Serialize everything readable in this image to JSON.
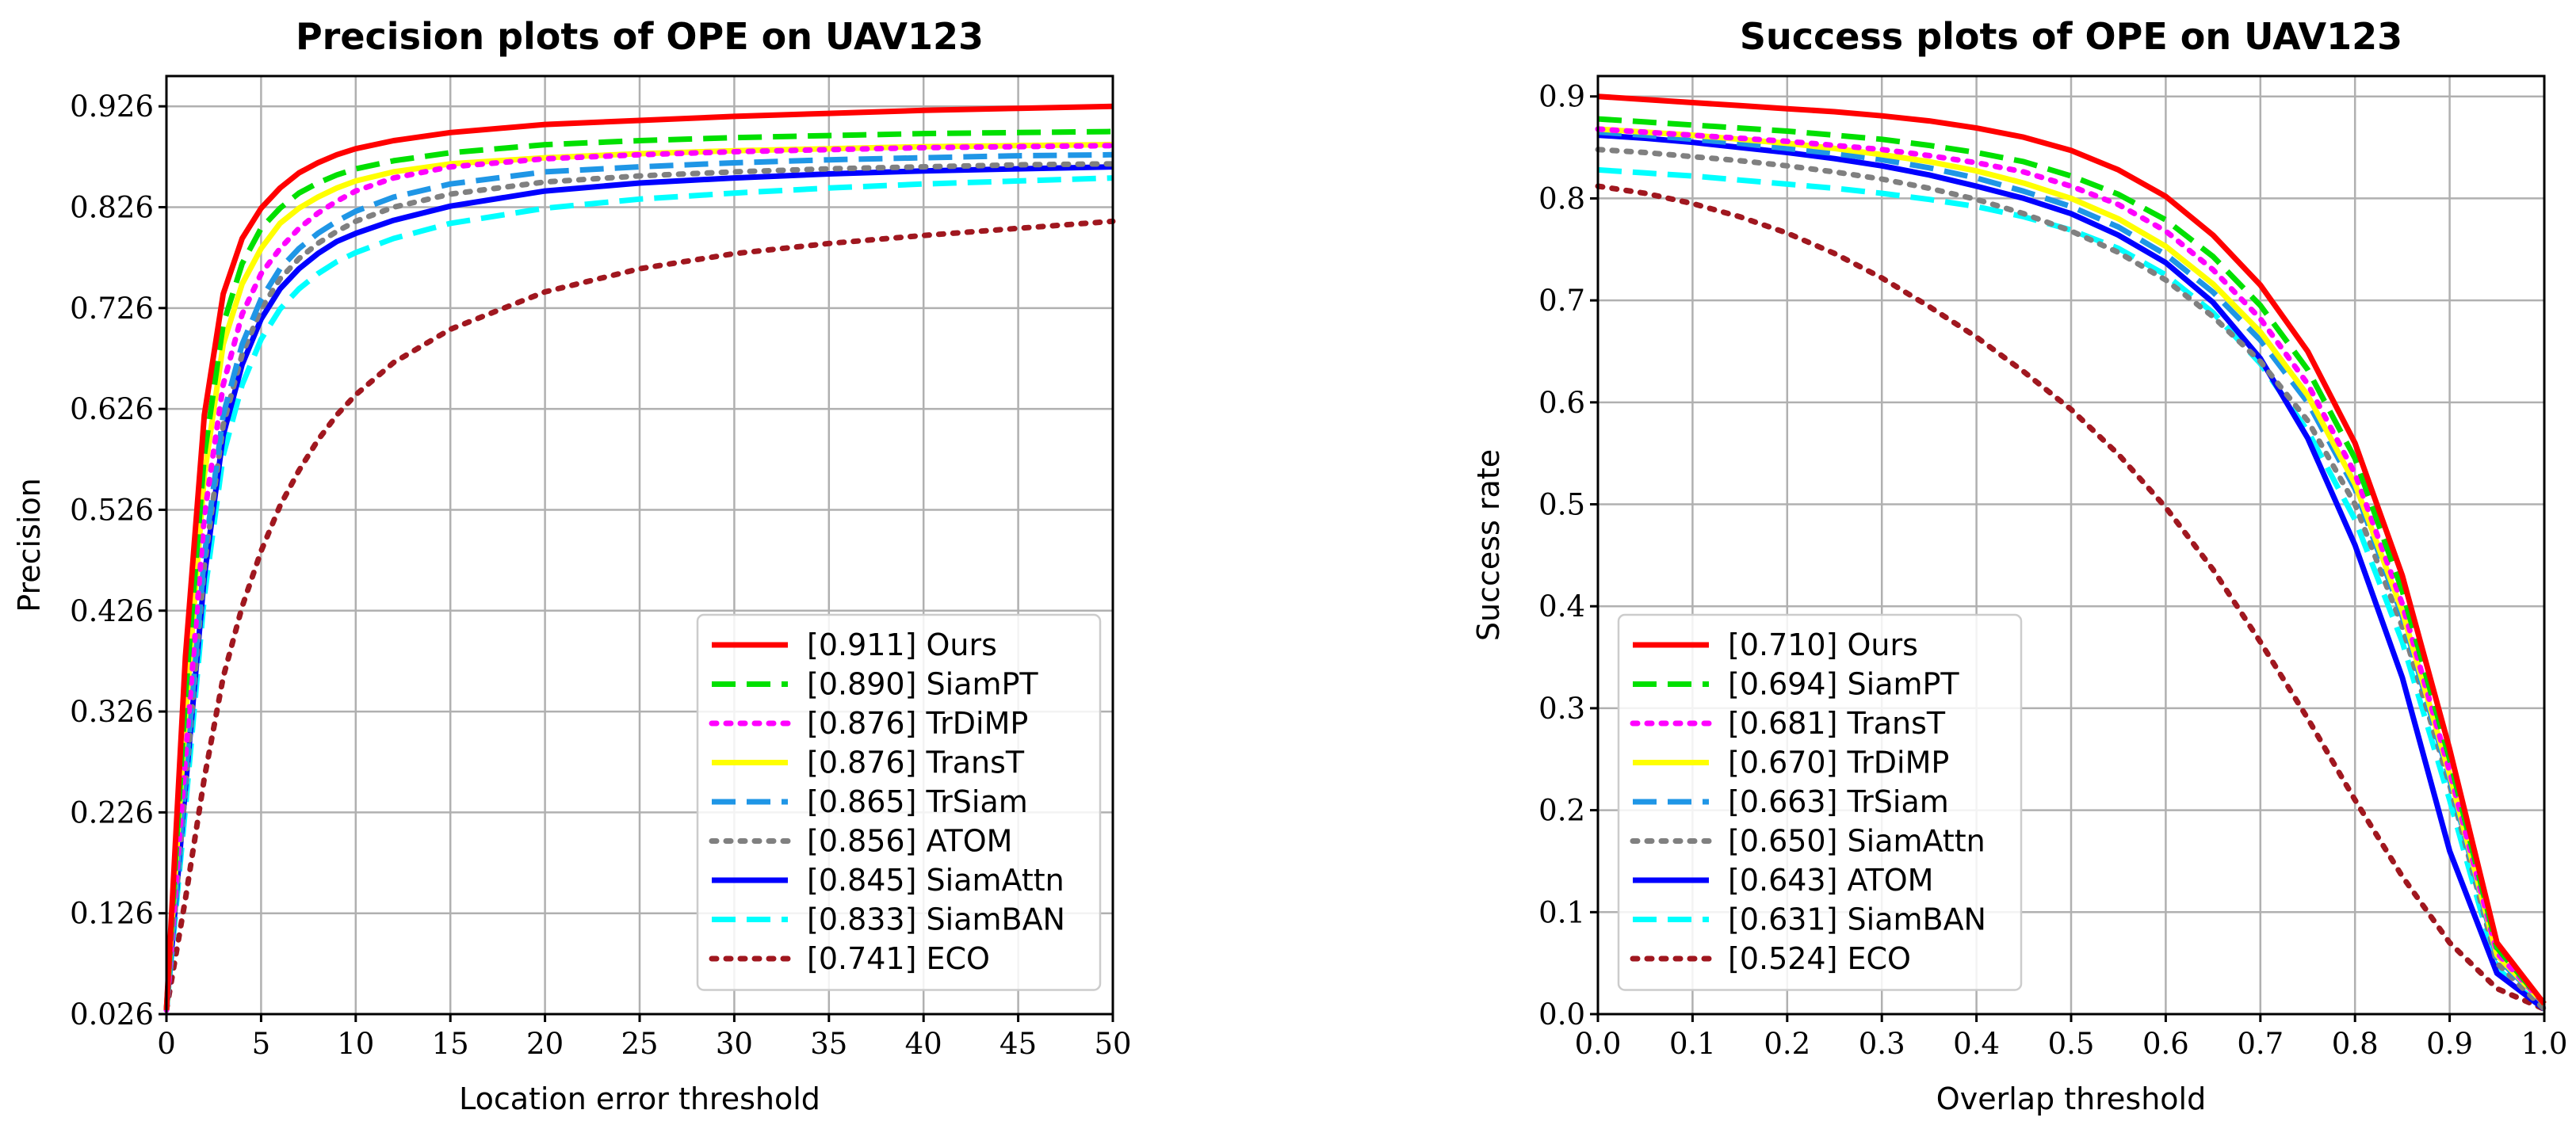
{
  "chart_data": [
    {
      "type": "line",
      "title": "Precision plots of OPE on UAV123",
      "xlabel": "Location error threshold",
      "ylabel": "Precision",
      "xlim": [
        0,
        50
      ],
      "ylim": [
        0.026,
        0.956
      ],
      "xticks": [
        "0",
        "5",
        "10",
        "15",
        "20",
        "25",
        "30",
        "35",
        "40",
        "45",
        "50"
      ],
      "xtick_values": [
        0,
        5,
        10,
        15,
        20,
        25,
        30,
        35,
        40,
        45,
        50
      ],
      "yticks": [
        "0.026",
        "0.126",
        "0.226",
        "0.326",
        "0.426",
        "0.526",
        "0.626",
        "0.726",
        "0.826",
        "0.926"
      ],
      "ytick_values": [
        0.026,
        0.126,
        0.226,
        0.326,
        0.426,
        0.526,
        0.626,
        0.726,
        0.826,
        0.926
      ],
      "grid": true,
      "legend_position": "lower-right",
      "x": [
        0,
        1,
        2,
        3,
        4,
        5,
        6,
        7,
        8,
        9,
        10,
        12,
        15,
        20,
        25,
        30,
        35,
        40,
        45,
        50
      ],
      "series": [
        {
          "name": "Ours",
          "score": "[0.911]",
          "color": "#ff0000",
          "style": "solid",
          "values": [
            0.03,
            0.38,
            0.62,
            0.74,
            0.795,
            0.825,
            0.845,
            0.86,
            0.87,
            0.878,
            0.884,
            0.892,
            0.9,
            0.908,
            0.912,
            0.916,
            0.919,
            0.922,
            0.924,
            0.926
          ]
        },
        {
          "name": "SiamPT",
          "score": "[0.890]",
          "color": "#00e000",
          "style": "dashed",
          "values": [
            0.03,
            0.34,
            0.58,
            0.71,
            0.77,
            0.805,
            0.825,
            0.84,
            0.85,
            0.858,
            0.864,
            0.872,
            0.88,
            0.888,
            0.892,
            0.895,
            0.897,
            0.899,
            0.9,
            0.901
          ]
        },
        {
          "name": "TrDiMP",
          "score": "[0.876]",
          "color": "#ff00ff",
          "style": "dotted",
          "values": [
            0.03,
            0.28,
            0.52,
            0.65,
            0.72,
            0.76,
            0.785,
            0.805,
            0.82,
            0.832,
            0.842,
            0.855,
            0.866,
            0.874,
            0.878,
            0.881,
            0.883,
            0.885,
            0.886,
            0.887
          ]
        },
        {
          "name": "TransT",
          "score": "[0.876]",
          "color": "#ffff00",
          "style": "solid",
          "values": [
            0.03,
            0.32,
            0.56,
            0.69,
            0.75,
            0.785,
            0.81,
            0.825,
            0.836,
            0.845,
            0.852,
            0.861,
            0.869,
            0.875,
            0.879,
            0.882,
            0.884,
            0.886,
            0.887,
            0.888
          ]
        },
        {
          "name": "TrSiam",
          "score": "[0.865]",
          "color": "#1f96e6",
          "style": "dashed",
          "values": [
            0.03,
            0.26,
            0.48,
            0.62,
            0.69,
            0.735,
            0.765,
            0.785,
            0.8,
            0.812,
            0.822,
            0.836,
            0.849,
            0.861,
            0.866,
            0.87,
            0.873,
            0.875,
            0.877,
            0.878
          ]
        },
        {
          "name": "ATOM",
          "score": "[0.856]",
          "color": "#808080",
          "style": "dotted",
          "values": [
            0.03,
            0.25,
            0.47,
            0.61,
            0.68,
            0.725,
            0.755,
            0.775,
            0.79,
            0.802,
            0.812,
            0.826,
            0.839,
            0.851,
            0.857,
            0.861,
            0.864,
            0.866,
            0.868,
            0.869
          ]
        },
        {
          "name": "SiamAttn",
          "score": "[0.845]",
          "color": "#0000ff",
          "style": "solid",
          "values": [
            0.03,
            0.25,
            0.46,
            0.6,
            0.67,
            0.715,
            0.745,
            0.765,
            0.78,
            0.792,
            0.8,
            0.813,
            0.827,
            0.842,
            0.85,
            0.855,
            0.859,
            0.862,
            0.864,
            0.866
          ]
        },
        {
          "name": "SiamBAN",
          "score": "[0.833]",
          "color": "#00ffff",
          "style": "dashed",
          "values": [
            0.03,
            0.23,
            0.44,
            0.58,
            0.65,
            0.695,
            0.725,
            0.745,
            0.76,
            0.772,
            0.781,
            0.795,
            0.81,
            0.825,
            0.834,
            0.84,
            0.845,
            0.849,
            0.852,
            0.855
          ]
        },
        {
          "name": "ECO",
          "score": "[0.741]",
          "color": "#a0171f",
          "style": "dotted",
          "values": [
            0.03,
            0.14,
            0.26,
            0.36,
            0.43,
            0.485,
            0.53,
            0.565,
            0.595,
            0.62,
            0.64,
            0.672,
            0.705,
            0.742,
            0.765,
            0.78,
            0.79,
            0.798,
            0.805,
            0.812
          ]
        }
      ]
    },
    {
      "type": "line",
      "title": "Success plots of OPE on UAV123",
      "xlabel": "Overlap threshold",
      "ylabel": "Success rate",
      "xlim": [
        0,
        1
      ],
      "ylim": [
        0,
        0.92
      ],
      "xticks": [
        "0.0",
        "0.1",
        "0.2",
        "0.3",
        "0.4",
        "0.5",
        "0.6",
        "0.7",
        "0.8",
        "0.9",
        "1.0"
      ],
      "xtick_values": [
        0,
        0.1,
        0.2,
        0.3,
        0.4,
        0.5,
        0.6,
        0.7,
        0.8,
        0.9,
        1.0
      ],
      "yticks": [
        "0.0",
        "0.1",
        "0.2",
        "0.3",
        "0.4",
        "0.5",
        "0.6",
        "0.7",
        "0.8",
        "0.9"
      ],
      "ytick_values": [
        0,
        0.1,
        0.2,
        0.3,
        0.4,
        0.5,
        0.6,
        0.7,
        0.8,
        0.9
      ],
      "grid": true,
      "legend_position": "lower-left",
      "x": [
        0,
        0.05,
        0.1,
        0.15,
        0.2,
        0.25,
        0.3,
        0.35,
        0.4,
        0.45,
        0.5,
        0.55,
        0.6,
        0.65,
        0.7,
        0.75,
        0.8,
        0.85,
        0.9,
        0.95,
        1.0
      ],
      "series": [
        {
          "name": "Ours",
          "score": "[0.710]",
          "color": "#ff0000",
          "style": "solid",
          "values": [
            0.9,
            0.897,
            0.894,
            0.891,
            0.888,
            0.885,
            0.881,
            0.876,
            0.869,
            0.86,
            0.847,
            0.828,
            0.802,
            0.764,
            0.715,
            0.65,
            0.56,
            0.43,
            0.26,
            0.07,
            0.01
          ]
        },
        {
          "name": "SiamPT",
          "score": "[0.694]",
          "color": "#00e000",
          "style": "dashed",
          "values": [
            0.878,
            0.875,
            0.872,
            0.869,
            0.866,
            0.862,
            0.858,
            0.852,
            0.845,
            0.836,
            0.822,
            0.804,
            0.779,
            0.743,
            0.695,
            0.632,
            0.545,
            0.415,
            0.25,
            0.065,
            0.01
          ]
        },
        {
          "name": "TransT",
          "score": "[0.681]",
          "color": "#ff00ff",
          "style": "dotted",
          "values": [
            0.868,
            0.865,
            0.862,
            0.859,
            0.856,
            0.852,
            0.848,
            0.842,
            0.835,
            0.826,
            0.812,
            0.794,
            0.768,
            0.73,
            0.682,
            0.618,
            0.53,
            0.402,
            0.238,
            0.06,
            0.01
          ]
        },
        {
          "name": "TrDiMP",
          "score": "[0.670]",
          "color": "#ffff00",
          "style": "solid",
          "values": [
            0.868,
            0.865,
            0.862,
            0.858,
            0.854,
            0.849,
            0.843,
            0.836,
            0.827,
            0.815,
            0.8,
            0.78,
            0.753,
            0.716,
            0.669,
            0.607,
            0.52,
            0.395,
            0.235,
            0.058,
            0.01
          ]
        },
        {
          "name": "TrSiam",
          "score": "[0.663]",
          "color": "#1f96e6",
          "style": "dashed",
          "values": [
            0.865,
            0.862,
            0.858,
            0.854,
            0.849,
            0.844,
            0.838,
            0.83,
            0.82,
            0.807,
            0.792,
            0.772,
            0.745,
            0.708,
            0.661,
            0.6,
            0.515,
            0.39,
            0.23,
            0.055,
            0.01
          ]
        },
        {
          "name": "SiamAttn",
          "score": "[0.650]",
          "color": "#808080",
          "style": "dotted",
          "values": [
            0.848,
            0.845,
            0.841,
            0.837,
            0.832,
            0.826,
            0.819,
            0.81,
            0.799,
            0.785,
            0.768,
            0.747,
            0.72,
            0.684,
            0.64,
            0.582,
            0.5,
            0.38,
            0.225,
            0.05,
            0.005
          ]
        },
        {
          "name": "ATOM",
          "score": "[0.643]",
          "color": "#0000ff",
          "style": "solid",
          "values": [
            0.862,
            0.859,
            0.855,
            0.85,
            0.845,
            0.839,
            0.832,
            0.823,
            0.812,
            0.8,
            0.785,
            0.764,
            0.737,
            0.698,
            0.643,
            0.565,
            0.46,
            0.33,
            0.16,
            0.04,
            0.005
          ]
        },
        {
          "name": "SiamBAN",
          "score": "[0.631]",
          "color": "#00ffff",
          "style": "dashed",
          "values": [
            0.828,
            0.825,
            0.822,
            0.818,
            0.814,
            0.81,
            0.805,
            0.799,
            0.792,
            0.782,
            0.769,
            0.751,
            0.725,
            0.688,
            0.638,
            0.572,
            0.485,
            0.365,
            0.21,
            0.045,
            0.005
          ]
        },
        {
          "name": "ECO",
          "score": "[0.524]",
          "color": "#a0171f",
          "style": "dotted",
          "values": [
            0.812,
            0.805,
            0.795,
            0.782,
            0.766,
            0.746,
            0.722,
            0.694,
            0.664,
            0.63,
            0.593,
            0.549,
            0.497,
            0.436,
            0.365,
            0.29,
            0.21,
            0.135,
            0.07,
            0.025,
            0.005
          ]
        }
      ]
    }
  ]
}
